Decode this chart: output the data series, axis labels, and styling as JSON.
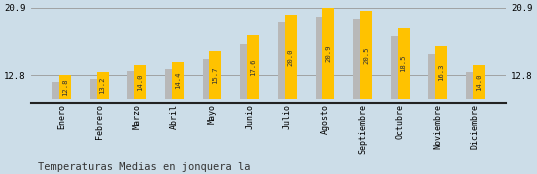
{
  "months": [
    "Enero",
    "Febrero",
    "Marzo",
    "Abril",
    "Mayo",
    "Junio",
    "Julio",
    "Agosto",
    "Septiembre",
    "Octubre",
    "Noviembre",
    "Diciembre"
  ],
  "values": [
    12.8,
    13.2,
    14.0,
    14.4,
    15.7,
    17.6,
    20.0,
    20.9,
    20.5,
    18.5,
    16.3,
    14.0
  ],
  "gray_values": [
    12.0,
    12.4,
    13.3,
    13.6,
    14.8,
    16.5,
    19.2,
    19.8,
    19.6,
    17.5,
    15.4,
    13.2
  ],
  "bar_color_yellow": "#FFC200",
  "bar_color_gray": "#B8B8B8",
  "background_color": "#CCDDE8",
  "ylim_min": 10.0,
  "ylim_max": 20.9,
  "yticks": [
    12.8,
    20.9
  ],
  "title": "Temperaturas Medias en jonquera la",
  "title_fontsize": 7.5,
  "tick_fontsize": 6.5,
  "label_fontsize": 6,
  "value_fontsize": 5.2,
  "hline_color": "#999999",
  "axis_line_color": "#222222"
}
